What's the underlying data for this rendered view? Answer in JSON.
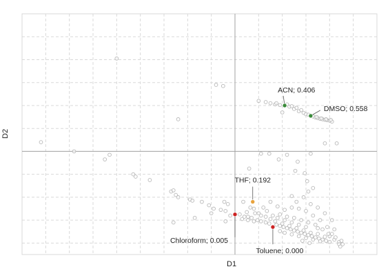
{
  "chart_data": {
    "type": "scatter",
    "title": "",
    "xlabel": "D1",
    "ylabel": "D2",
    "grid": true,
    "legend": "none",
    "xlim": [
      -9,
      6
    ],
    "ylim": [
      -4.5,
      6
    ],
    "colors": {
      "background_points": "#b8b8b8",
      "grid": "#d9d9d9",
      "axis": "#a0a0a0",
      "acn": "#3a8a3a",
      "dmso": "#3a8a3a",
      "thf": "#e8a33d",
      "chloroform": "#cc2222",
      "toluene": "#cc2222"
    },
    "highlighted": [
      {
        "name": "ACN",
        "label": "ACN; 0.406",
        "x": 2.1,
        "y": 2.0,
        "color_key": "acn",
        "label_pos": "above-right"
      },
      {
        "name": "DMSO",
        "label": "DMSO; 0.558",
        "x": 3.2,
        "y": 1.55,
        "color_key": "dmso",
        "label_pos": "right"
      },
      {
        "name": "THF",
        "label": "THF; 0.192",
        "x": 0.75,
        "y": -2.2,
        "color_key": "thf",
        "label_pos": "above"
      },
      {
        "name": "Chloroform",
        "label": "Chloroform; 0.005",
        "x": 0.0,
        "y": -2.75,
        "color_key": "chloroform",
        "label_pos": "below-left"
      },
      {
        "name": "Toluene",
        "label": "Toluene; 0.000",
        "x": 1.6,
        "y": -3.3,
        "color_key": "toluene",
        "label_pos": "below"
      }
    ],
    "points": [
      [
        -5.0,
        4.05
      ],
      [
        -0.8,
        2.9
      ],
      [
        -0.5,
        2.85
      ],
      [
        -2.4,
        1.4
      ],
      [
        -8.2,
        0.4
      ],
      [
        -6.8,
        0.0
      ],
      [
        -5.5,
        -0.35
      ],
      [
        -5.3,
        -0.15
      ],
      [
        -4.3,
        -1.0
      ],
      [
        -4.2,
        -1.1
      ],
      [
        -3.6,
        -1.25
      ],
      [
        -2.7,
        -1.75
      ],
      [
        -2.6,
        -1.7
      ],
      [
        -2.4,
        -2.0
      ],
      [
        -2.5,
        -1.9
      ],
      [
        -1.9,
        -2.1
      ],
      [
        -1.8,
        -2.15
      ],
      [
        -1.4,
        -2.2
      ],
      [
        -1.1,
        -2.35
      ],
      [
        -0.9,
        -2.5
      ],
      [
        -0.6,
        -2.55
      ],
      [
        -0.4,
        -2.6
      ],
      [
        -0.45,
        -2.2
      ],
      [
        -0.3,
        -2.3
      ],
      [
        -1.0,
        -2.7
      ],
      [
        -1.7,
        -2.9
      ],
      [
        -2.6,
        -3.1
      ],
      [
        -0.4,
        -3.05
      ],
      [
        0.4,
        -2.85
      ],
      [
        0.55,
        -2.85
      ],
      [
        0.7,
        -2.9
      ],
      [
        0.3,
        -2.95
      ],
      [
        0.55,
        -3.0
      ],
      [
        0.8,
        -3.05
      ],
      [
        0.95,
        -3.0
      ],
      [
        1.1,
        -3.05
      ],
      [
        1.3,
        -3.1
      ],
      [
        1.45,
        -3.15
      ],
      [
        1.75,
        -3.2
      ],
      [
        1.9,
        -3.25
      ],
      [
        2.05,
        -3.3
      ],
      [
        2.2,
        -3.35
      ],
      [
        2.35,
        -3.4
      ],
      [
        2.5,
        -3.45
      ],
      [
        2.65,
        -3.5
      ],
      [
        2.8,
        -3.55
      ],
      [
        2.95,
        -3.6
      ],
      [
        3.1,
        -3.65
      ],
      [
        3.25,
        -3.7
      ],
      [
        3.4,
        -3.75
      ],
      [
        3.55,
        -3.8
      ],
      [
        3.7,
        -3.85
      ],
      [
        3.85,
        -3.9
      ],
      [
        4.0,
        -3.95
      ],
      [
        3.8,
        -3.72
      ],
      [
        3.5,
        -3.6
      ],
      [
        3.2,
        -3.55
      ],
      [
        2.9,
        -3.45
      ],
      [
        2.6,
        -3.35
      ],
      [
        2.3,
        -3.25
      ],
      [
        2.0,
        -3.15
      ],
      [
        1.7,
        -3.05
      ],
      [
        1.5,
        -2.95
      ],
      [
        1.3,
        -2.85
      ],
      [
        1.1,
        -2.8
      ],
      [
        1.0,
        -2.7
      ],
      [
        1.6,
        -2.8
      ],
      [
        1.9,
        -2.75
      ],
      [
        2.2,
        -2.85
      ],
      [
        2.5,
        -2.9
      ],
      [
        2.8,
        -3.0
      ],
      [
        3.1,
        -3.1
      ],
      [
        3.4,
        -3.2
      ],
      [
        3.7,
        -3.4
      ],
      [
        4.0,
        -3.7
      ],
      [
        4.2,
        -3.85
      ],
      [
        4.4,
        -3.95
      ],
      [
        4.1,
        -3.6
      ],
      [
        3.9,
        -3.3
      ],
      [
        3.6,
        -3.0
      ],
      [
        3.3,
        -2.8
      ],
      [
        3.0,
        -2.6
      ],
      [
        2.7,
        -2.5
      ],
      [
        2.4,
        -2.45
      ],
      [
        2.1,
        -2.55
      ],
      [
        1.8,
        -2.4
      ],
      [
        2.6,
        -2.2
      ],
      [
        2.9,
        -2.0
      ],
      [
        3.2,
        -2.3
      ],
      [
        3.5,
        -2.45
      ],
      [
        3.8,
        -2.7
      ],
      [
        4.1,
        -3.0
      ],
      [
        3.3,
        -1.6
      ],
      [
        3.05,
        -1.3
      ],
      [
        2.95,
        -0.95
      ],
      [
        2.55,
        -0.85
      ],
      [
        1.85,
        -0.35
      ],
      [
        3.1,
        -1.75
      ],
      [
        2.4,
        -1.95
      ],
      [
        1.5,
        -2.2
      ],
      [
        1.2,
        -2.45
      ],
      [
        0.8,
        -2.5
      ],
      [
        0.85,
        -2.7
      ],
      [
        1.35,
        -2.6
      ],
      [
        0.35,
        -2.2
      ],
      [
        0.65,
        -2.45
      ],
      [
        4.2,
        -3.4
      ],
      [
        3.5,
        -3.35
      ],
      [
        3.0,
        -3.3
      ],
      [
        2.7,
        -3.2
      ],
      [
        2.4,
        -3.1
      ],
      [
        2.1,
        -3.0
      ],
      [
        1.8,
        -2.9
      ],
      [
        4.4,
        -4.05
      ],
      [
        3.6,
        -3.92
      ],
      [
        3.3,
        -3.85
      ],
      [
        3.0,
        -3.78
      ],
      [
        2.7,
        -3.7
      ],
      [
        2.4,
        -3.62
      ],
      [
        2.1,
        -3.55
      ],
      [
        1.9,
        -3.48
      ],
      [
        0.5,
        -2.65
      ],
      [
        0.2,
        -2.75
      ],
      [
        -0.2,
        -2.8
      ],
      [
        2.85,
        -3.9
      ],
      [
        3.15,
        -4.0
      ],
      [
        1.0,
        2.2
      ],
      [
        1.3,
        2.15
      ],
      [
        1.5,
        2.1
      ],
      [
        1.7,
        2.05
      ],
      [
        1.9,
        2.02
      ],
      [
        2.3,
        1.95
      ],
      [
        2.5,
        1.85
      ],
      [
        2.7,
        1.75
      ],
      [
        2.9,
        1.68
      ],
      [
        3.0,
        1.62
      ],
      [
        3.1,
        1.6
      ],
      [
        3.3,
        1.52
      ],
      [
        3.4,
        1.48
      ],
      [
        3.5,
        1.45
      ],
      [
        3.6,
        1.42
      ],
      [
        3.7,
        1.4
      ],
      [
        3.8,
        1.38
      ],
      [
        3.9,
        1.36
      ],
      [
        4.0,
        1.34
      ],
      [
        4.1,
        1.3
      ],
      [
        2.6,
        1.9
      ],
      [
        2.8,
        1.8
      ],
      [
        3.2,
        1.56
      ],
      [
        3.45,
        1.5
      ],
      [
        3.65,
        1.44
      ],
      [
        3.85,
        1.4
      ],
      [
        4.05,
        1.37
      ],
      [
        2.2,
        2.05
      ],
      [
        2.4,
        1.97
      ],
      [
        1.75,
        2.1
      ],
      [
        2.0,
        1.7
      ],
      [
        3.8,
        0.35
      ],
      [
        4.3,
        0.35
      ],
      [
        2.65,
        -0.45
      ],
      [
        3.2,
        -0.1
      ],
      [
        2.2,
        -0.15
      ],
      [
        0.6,
        -0.75
      ],
      [
        1.45,
        -0.1
      ],
      [
        1.1,
        -0.1
      ],
      [
        4.45,
        -4.15
      ],
      [
        4.55,
        -4.05
      ],
      [
        3.95,
        -3.6
      ],
      [
        4.25,
        -3.75
      ],
      [
        4.5,
        -3.9
      ]
    ]
  }
}
